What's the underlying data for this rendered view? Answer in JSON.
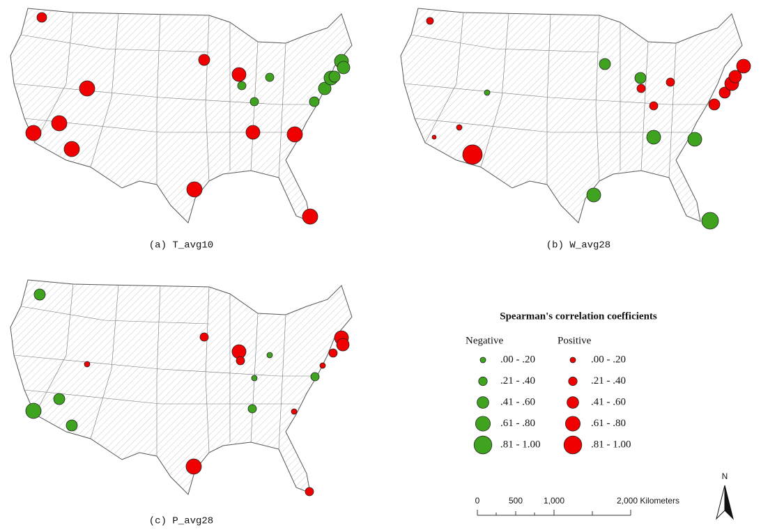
{
  "panels": [
    {
      "caption": "(a) T_avg10"
    },
    {
      "caption": "(b) W_avg28"
    },
    {
      "caption": "(c) P_avg28"
    }
  ],
  "legend": {
    "title": "Spearman's correlation coefficients",
    "negative_label": "Negative",
    "positive_label": "Positive",
    "classes": [
      ".00 - .20",
      ".21 - .40",
      ".41 - .60",
      ".61 - .80",
      ".81 - 1.00"
    ]
  },
  "scale_bar": {
    "labels": [
      "0",
      "500",
      "1,000",
      "2,000 Kilometers"
    ]
  },
  "north_label": "N"
}
